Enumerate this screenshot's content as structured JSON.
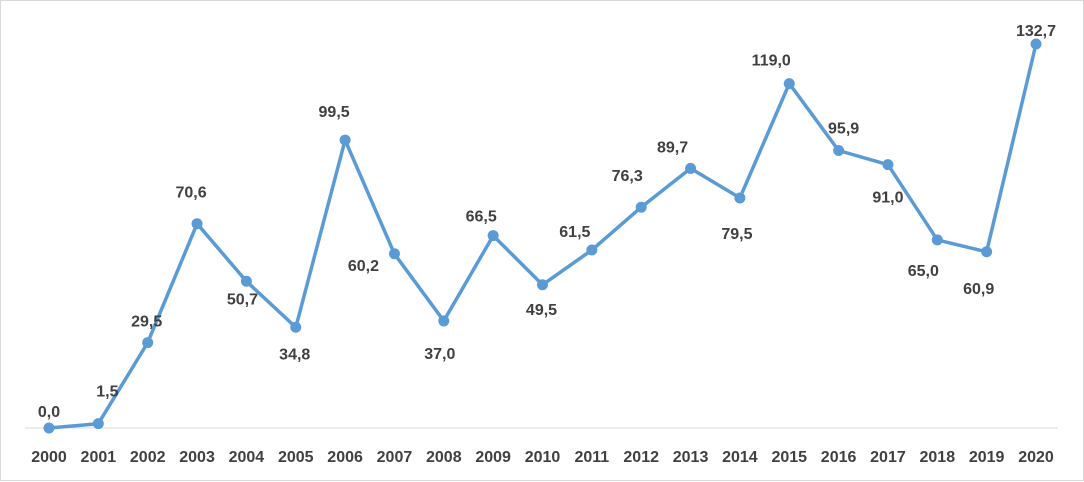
{
  "chart_data": {
    "type": "line",
    "title": "",
    "xlabel": "",
    "ylabel": "",
    "categories": [
      "2000",
      "2001",
      "2002",
      "2003",
      "2004",
      "2005",
      "2006",
      "2007",
      "2008",
      "2009",
      "2010",
      "2011",
      "2012",
      "2013",
      "2014",
      "2015",
      "2016",
      "2017",
      "2018",
      "2019",
      "2020"
    ],
    "series": [
      {
        "values": [
          0.0,
          1.5,
          29.5,
          70.6,
          50.7,
          34.8,
          99.5,
          60.2,
          37.0,
          66.5,
          49.5,
          61.5,
          76.3,
          89.7,
          79.5,
          119.0,
          95.9,
          91.0,
          65.0,
          60.9,
          132.7
        ],
        "labels": [
          "0,0",
          "1,5",
          "29,5",
          "70,6",
          "50,7",
          "34,8",
          "99,5",
          "60,2",
          "37,0",
          "66,5",
          "49,5",
          "61,5",
          "76,3",
          "89,7",
          "79,5",
          "119,0",
          "95,9",
          "91,0",
          "65,0",
          "60,9",
          "132,7"
        ],
        "color": "#5b9bd5"
      }
    ],
    "ylim": [
      0,
      132.7
    ],
    "grid": false,
    "legend": "none",
    "axis_color": "#d9d9d9"
  }
}
